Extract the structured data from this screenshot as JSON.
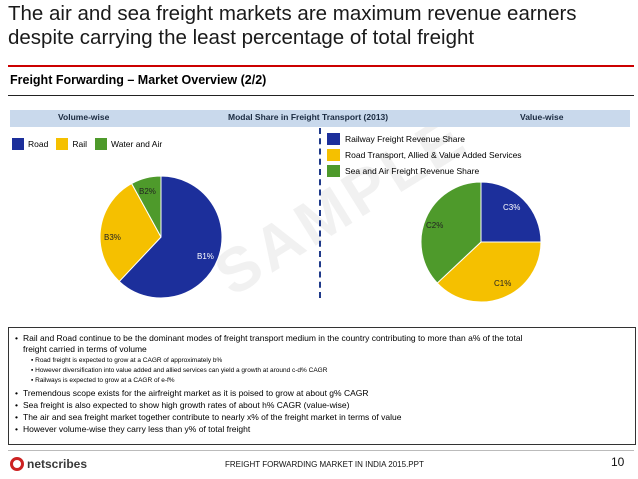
{
  "slide": {
    "title": "The air and sea freight markets are maximum revenue earners despite carrying the least percentage of total freight",
    "subtitle": "Freight Forwarding – Market Overview (2/2)",
    "band": {
      "left": "Volume-wise",
      "center": "Modal Share in Freight Transport (2013)",
      "right": "Value-wise"
    },
    "watermark": "SAMPLE",
    "footer": "FREIGHT FORWARDING MARKET IN INDIA 2015.PPT",
    "page_number": "10",
    "logo_text": "netscribes",
    "colors": {
      "accent_red": "#cc0000",
      "navy": "#1c2f9b",
      "gold": "#f5c000",
      "green": "#4e9a2b",
      "band": "#c9d9ec"
    }
  },
  "chart_data": [
    {
      "type": "pie",
      "title": "Volume-wise",
      "legend": {
        "position": "top-left",
        "entries": [
          "Road",
          "Rail",
          "Water and Air"
        ]
      },
      "slices": [
        {
          "name": "Road",
          "label": "B1%",
          "value": 62,
          "color": "#1c2f9b"
        },
        {
          "name": "Rail",
          "label": "B3%",
          "value": 30,
          "color": "#f5c000"
        },
        {
          "name": "Water and Air",
          "label": "B2%",
          "value": 8,
          "color": "#4e9a2b"
        }
      ]
    },
    {
      "type": "pie",
      "title": "Value-wise",
      "legend": {
        "position": "top-right",
        "entries": [
          "Railway Freight Revenue Share",
          "Road Transport, Allied & Value Added Services",
          "Sea and Air Freight Revenue Share"
        ]
      },
      "slices": [
        {
          "name": "Railway Freight Revenue Share",
          "label": "C3%",
          "value": 25,
          "color": "#1c2f9b"
        },
        {
          "name": "Road Transport, Allied & Value Added Services",
          "label": "C1%",
          "value": 38,
          "color": "#f5c000"
        },
        {
          "name": "Sea and Air Freight Revenue Share",
          "label": "C2%",
          "value": 37,
          "color": "#4e9a2b"
        }
      ]
    }
  ],
  "bullets": [
    {
      "level": 1,
      "text": "Rail and Road continue to be the dominant modes of freight transport medium in the country contributing to more than a% of the total"
    },
    {
      "level": 1,
      "text": "freight carried in terms of volume",
      "continuation": true
    },
    {
      "level": 2,
      "text": "Road freight is expected to grow at a CAGR of approximately b%"
    },
    {
      "level": 2,
      "text": "However diversification into value added and allied services can yield a growth at around c-d% CAGR"
    },
    {
      "level": 2,
      "text": "Railways is expected to grow at a CAGR of e-f%"
    },
    {
      "level": 1,
      "text": "Tremendous scope exists for the airfreight market as it is poised to grow at about g% CAGR"
    },
    {
      "level": 1,
      "text": "Sea freight is also expected to show high growth rates of about h% CAGR (value-wise)"
    },
    {
      "level": 1,
      "text": "The air and sea freight market together contribute to nearly x% of the freight market in terms of value"
    },
    {
      "level": 1,
      "text": "However volume-wise they carry less than y% of total freight"
    }
  ]
}
